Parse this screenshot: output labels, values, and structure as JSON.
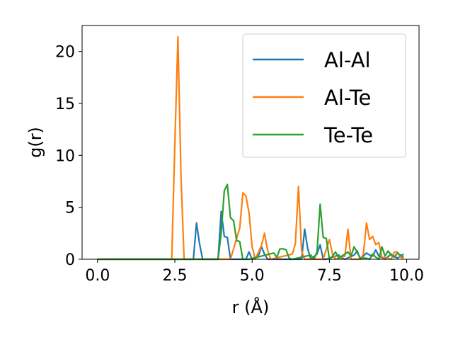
{
  "chart_data": {
    "type": "line",
    "xlabel": "r (Å)",
    "ylabel": "g(r)",
    "xlim": [
      -0.5,
      10.4
    ],
    "ylim": [
      0,
      22.5
    ],
    "xticks": [
      "0.0",
      "2.5",
      "5.0",
      "7.5",
      "10.0"
    ],
    "yticks": [
      "0",
      "5",
      "10",
      "15",
      "20"
    ],
    "legend_position": "top-right",
    "grid": false,
    "series": [
      {
        "name": "Al-Al",
        "color": "#1f77b4",
        "x": [
          0.0,
          3.1,
          3.2,
          3.3,
          3.4,
          3.9,
          4.0,
          4.1,
          4.2,
          4.3,
          4.8,
          4.9,
          5.0,
          5.2,
          5.3,
          5.4,
          5.5,
          6.6,
          6.7,
          6.8,
          6.9,
          7.1,
          7.2,
          7.3,
          7.4,
          7.8,
          7.9,
          8.0,
          8.3,
          8.4,
          8.5,
          8.7,
          8.8,
          8.9,
          9.0,
          9.1,
          9.3,
          9.5,
          9.7,
          9.9
        ],
        "y": [
          0.0,
          0.0,
          3.5,
          1.5,
          0.0,
          0.0,
          4.6,
          2.2,
          2.1,
          0.0,
          0.0,
          0.7,
          0.0,
          0.3,
          1.2,
          0.5,
          0.0,
          0.0,
          2.9,
          1.0,
          0.0,
          0.5,
          1.4,
          0.0,
          0.0,
          0.4,
          0.1,
          0.0,
          0.4,
          0.8,
          0.0,
          0.6,
          0.4,
          0.3,
          0.9,
          0.3,
          0.0,
          0.5,
          0.1,
          0.5
        ]
      },
      {
        "name": "Al-Te",
        "color": "#ff7f0e",
        "x": [
          0.0,
          2.4,
          2.5,
          2.6,
          2.7,
          2.8,
          3.3,
          4.3,
          4.6,
          4.7,
          4.8,
          4.9,
          5.0,
          5.1,
          5.3,
          5.4,
          5.5,
          5.6,
          6.3,
          6.4,
          6.5,
          6.6,
          6.7,
          7.3,
          7.5,
          7.6,
          7.7,
          8.0,
          8.1,
          8.2,
          8.5,
          8.6,
          8.7,
          8.8,
          8.9,
          9.0,
          9.1,
          9.2,
          9.5,
          9.6,
          9.7,
          9.8,
          9.9
        ],
        "y": [
          0.0,
          0.0,
          11.0,
          21.4,
          8.0,
          0.0,
          0.0,
          0.0,
          3.0,
          6.4,
          6.1,
          4.5,
          1.2,
          0.0,
          1.3,
          2.5,
          0.9,
          0.0,
          0.5,
          1.5,
          7.0,
          0.8,
          0.0,
          0.0,
          1.9,
          0.5,
          0.0,
          0.3,
          2.9,
          0.0,
          0.0,
          0.5,
          3.5,
          1.9,
          2.2,
          1.4,
          1.6,
          0.2,
          0.0,
          0.7,
          0.7,
          0.2,
          0.1
        ]
      },
      {
        "name": "Te-Te",
        "color": "#2ca02c",
        "x": [
          0.0,
          3.9,
          4.0,
          4.1,
          4.2,
          4.3,
          4.4,
          4.5,
          4.6,
          4.7,
          4.9,
          5.7,
          5.8,
          5.9,
          6.0,
          6.1,
          6.2,
          6.3,
          6.9,
          7.0,
          7.1,
          7.2,
          7.3,
          7.4,
          7.5,
          7.6,
          7.7,
          7.8,
          8.1,
          8.2,
          8.3,
          8.5,
          8.7,
          8.8,
          8.9,
          9.0,
          9.1,
          9.2,
          9.3,
          9.4,
          9.5,
          9.6,
          9.7,
          9.8,
          9.9
        ],
        "y": [
          0.0,
          0.0,
          2.5,
          6.6,
          7.2,
          4.0,
          3.7,
          1.8,
          1.7,
          0.0,
          0.0,
          0.6,
          0.2,
          1.0,
          1.0,
          0.9,
          0.1,
          0.0,
          0.4,
          0.0,
          0.7,
          5.3,
          2.1,
          2.0,
          0.0,
          0.3,
          0.7,
          0.1,
          0.7,
          0.3,
          1.2,
          0.1,
          0.1,
          0.0,
          0.5,
          0.2,
          0.0,
          1.2,
          0.3,
          0.8,
          0.4,
          0.2,
          0.6,
          0.4,
          0.2
        ]
      }
    ]
  }
}
